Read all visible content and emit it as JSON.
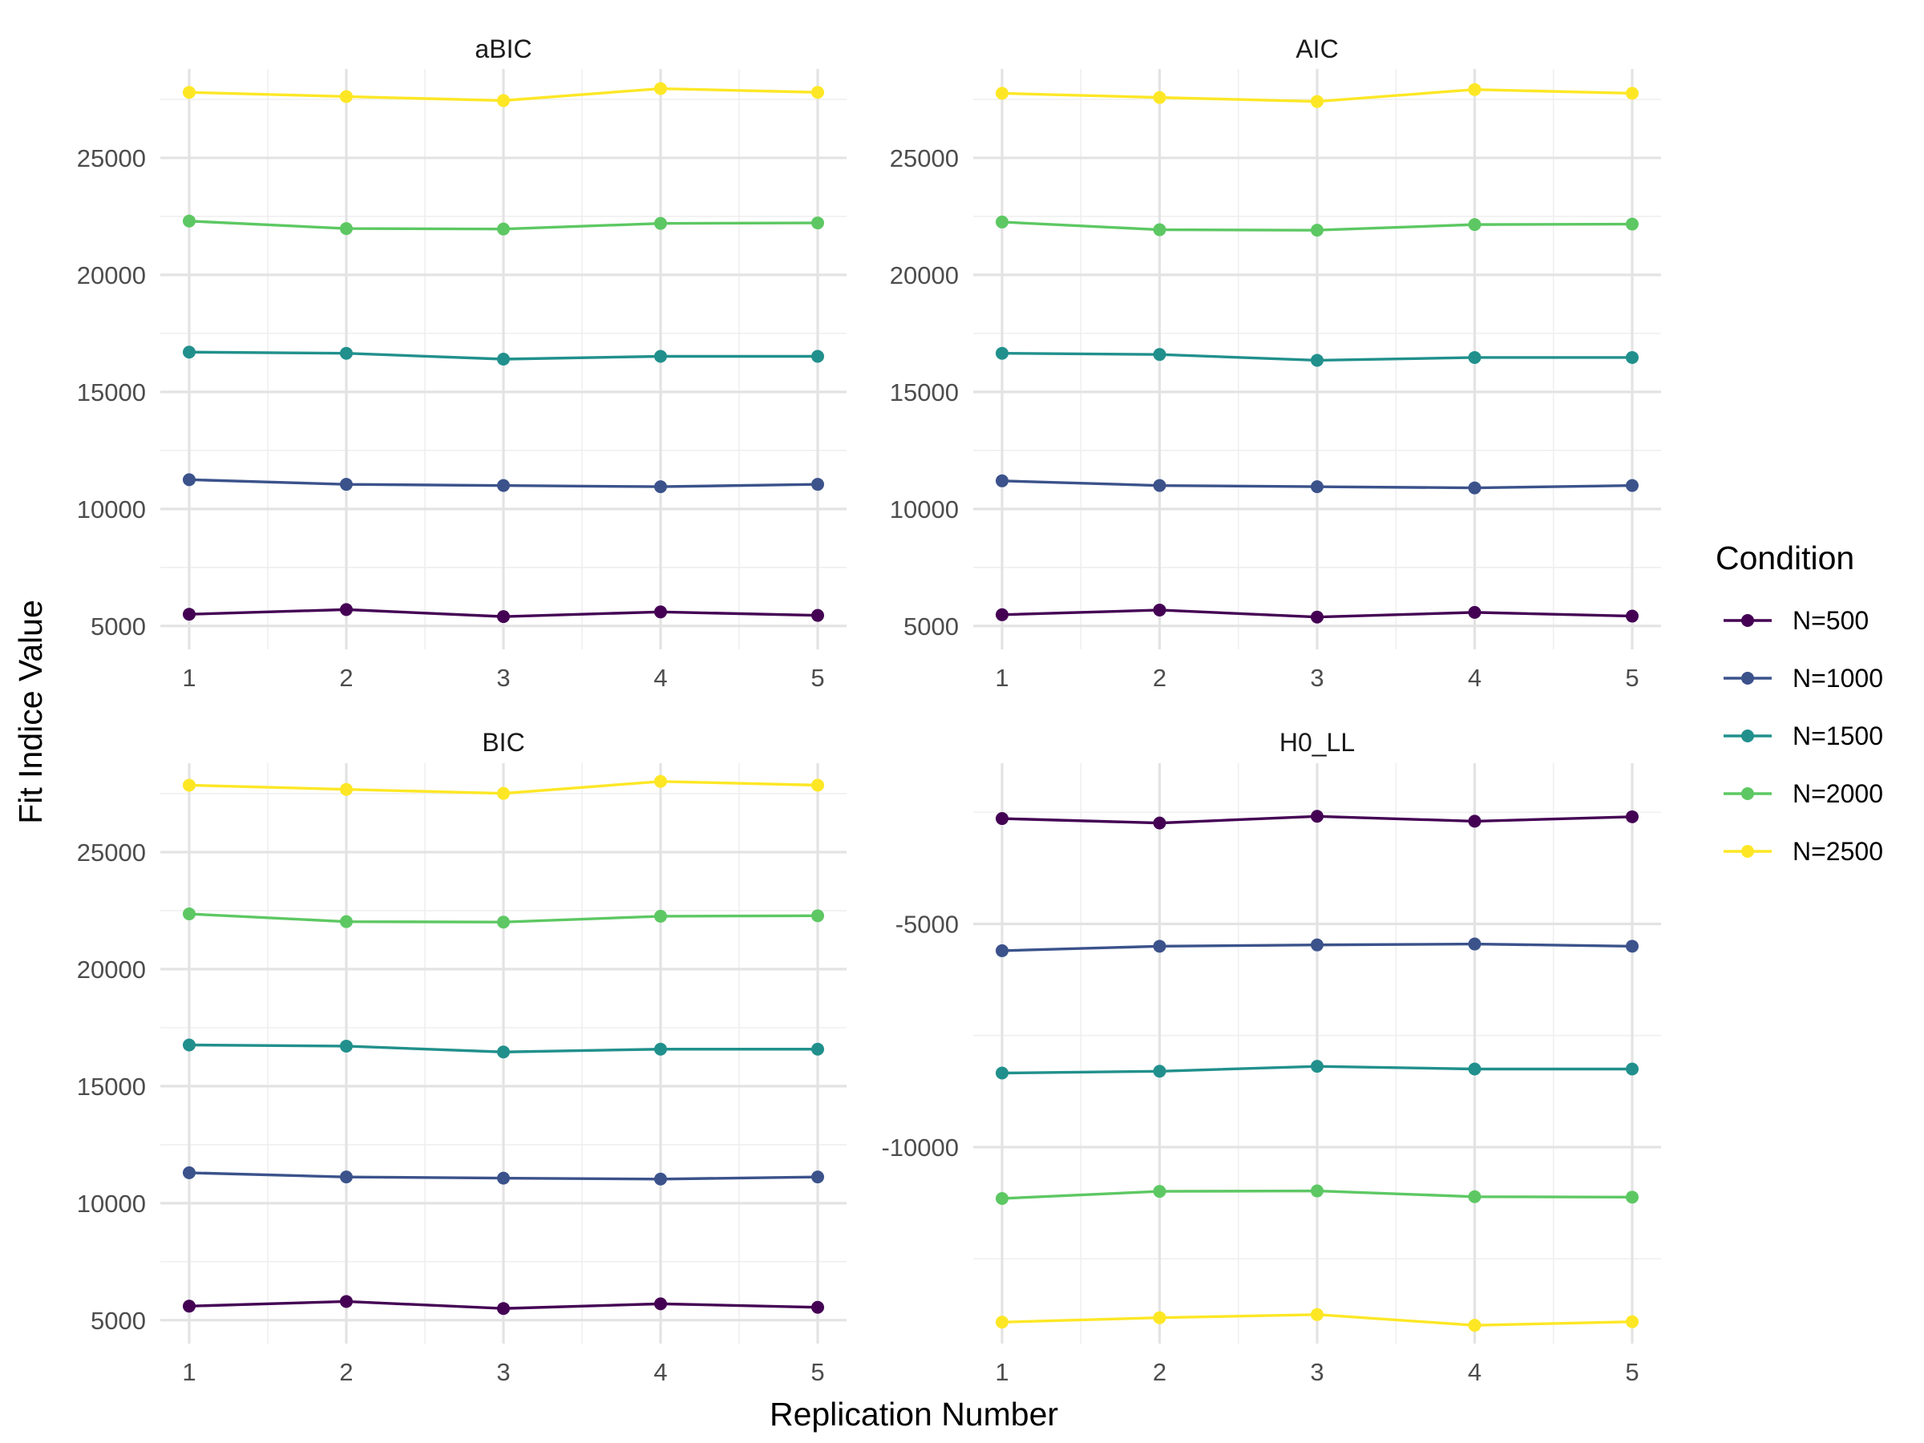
{
  "chart_data": {
    "type": "line",
    "xlabel": "Replication Number",
    "ylabel": "Fit Indice Value",
    "x": [
      1,
      2,
      3,
      4,
      5
    ],
    "legend": {
      "title": "Condition",
      "position": "right",
      "entries": [
        "N=500",
        "N=1000",
        "N=1500",
        "N=2000",
        "N=2500"
      ]
    },
    "colors": {
      "N=500": "#440154",
      "N=1000": "#3B528B",
      "N=1500": "#21908C",
      "N=2000": "#5DC863",
      "N=2500": "#FDE725"
    },
    "grid": true,
    "panels": [
      {
        "title": "aBIC",
        "ylim": [
          4000,
          28800
        ],
        "yticks": [
          5000,
          10000,
          15000,
          20000,
          25000
        ],
        "xticks": [
          "1",
          "2",
          "3",
          "4",
          "5"
        ],
        "series": [
          {
            "name": "N=500",
            "values": [
              5500,
              5700,
              5400,
              5600,
              5450
            ]
          },
          {
            "name": "N=1000",
            "values": [
              11250,
              11050,
              11000,
              10950,
              11050
            ]
          },
          {
            "name": "N=1500",
            "values": [
              16700,
              16650,
              16400,
              16520,
              16520
            ]
          },
          {
            "name": "N=2000",
            "values": [
              22300,
              21980,
              21960,
              22200,
              22220
            ]
          },
          {
            "name": "N=2500",
            "values": [
              27800,
              27620,
              27450,
              27960,
              27800
            ]
          }
        ]
      },
      {
        "title": "AIC",
        "ylim": [
          4000,
          28800
        ],
        "yticks": [
          5000,
          10000,
          15000,
          20000,
          25000
        ],
        "xticks": [
          "1",
          "2",
          "3",
          "4",
          "5"
        ],
        "series": [
          {
            "name": "N=500",
            "values": [
              5480,
              5680,
              5380,
              5580,
              5420
            ]
          },
          {
            "name": "N=1000",
            "values": [
              11200,
              11000,
              10950,
              10900,
              11000
            ]
          },
          {
            "name": "N=1500",
            "values": [
              16650,
              16600,
              16350,
              16470,
              16470
            ]
          },
          {
            "name": "N=2000",
            "values": [
              22260,
              21930,
              21910,
              22150,
              22170
            ]
          },
          {
            "name": "N=2500",
            "values": [
              27760,
              27580,
              27410,
              27920,
              27760
            ]
          }
        ]
      },
      {
        "title": "BIC",
        "ylim": [
          4000,
          28800
        ],
        "yticks": [
          5000,
          10000,
          15000,
          20000,
          25000
        ],
        "xticks": [
          "1",
          "2",
          "3",
          "4",
          "5"
        ],
        "series": [
          {
            "name": "N=500",
            "values": [
              5600,
              5800,
              5500,
              5700,
              5550
            ]
          },
          {
            "name": "N=1000",
            "values": [
              11300,
              11120,
              11070,
              11030,
              11120
            ]
          },
          {
            "name": "N=1500",
            "values": [
              16760,
              16710,
              16460,
              16580,
              16580
            ]
          },
          {
            "name": "N=2000",
            "values": [
              22360,
              22030,
              22010,
              22260,
              22280
            ]
          },
          {
            "name": "N=2500",
            "values": [
              27860,
              27680,
              27510,
              28020,
              27860
            ]
          }
        ]
      },
      {
        "title": "H0_LL",
        "ylim": [
          -14400,
          -1400
        ],
        "yticks": [
          -10000,
          -5000
        ],
        "xticks": [
          "1",
          "2",
          "3",
          "4",
          "5"
        ],
        "series": [
          {
            "name": "N=500",
            "values": [
              -2640,
              -2740,
              -2590,
              -2700,
              -2600
            ]
          },
          {
            "name": "N=1000",
            "values": [
              -5600,
              -5500,
              -5470,
              -5450,
              -5500
            ]
          },
          {
            "name": "N=1500",
            "values": [
              -8340,
              -8300,
              -8190,
              -8250,
              -8250
            ]
          },
          {
            "name": "N=2000",
            "values": [
              -11150,
              -10990,
              -10980,
              -11110,
              -11120
            ]
          },
          {
            "name": "N=2500",
            "values": [
              -13920,
              -13820,
              -13750,
              -13990,
              -13910
            ]
          }
        ]
      }
    ]
  }
}
